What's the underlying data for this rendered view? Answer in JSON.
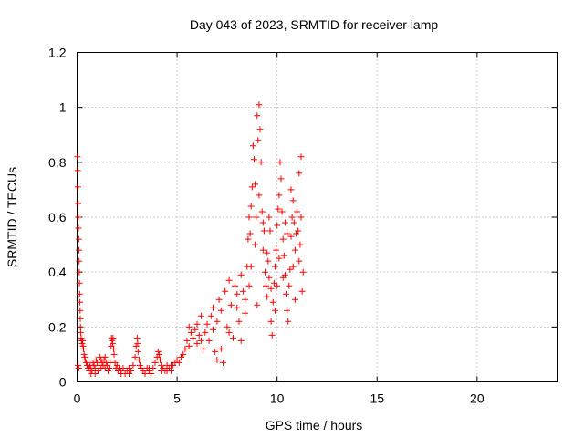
{
  "chart_data": {
    "type": "scatter",
    "title": "Day 043 of 2023, SRMTID for receiver lamp",
    "xlabel": "GPS time / hours",
    "ylabel": "SRMTID / TECUs",
    "xlim": [
      0,
      24
    ],
    "ylim": [
      0,
      1.2
    ],
    "xticks": [
      0,
      5,
      10,
      15,
      20
    ],
    "xtick_labels": [
      "0",
      "5",
      "10",
      "15",
      "20"
    ],
    "yticks": [
      0,
      0.2,
      0.4,
      0.6,
      0.8,
      1.0,
      1.2
    ],
    "ytick_labels": [
      "0",
      "0.2",
      "0.4",
      "0.6",
      "0.8",
      "1",
      "1.2"
    ],
    "grid": true,
    "marker": "+",
    "series_color": "#ff0000",
    "series": [
      {
        "name": "SRMTID",
        "points": [
          [
            0.02,
            0.82
          ],
          [
            0.03,
            0.77
          ],
          [
            0.04,
            0.71
          ],
          [
            0.05,
            0.65
          ],
          [
            0.06,
            0.6
          ],
          [
            0.07,
            0.56
          ],
          [
            0.08,
            0.52
          ],
          [
            0.09,
            0.48
          ],
          [
            0.1,
            0.44
          ],
          [
            0.11,
            0.4
          ],
          [
            0.12,
            0.36
          ],
          [
            0.13,
            0.32
          ],
          [
            0.14,
            0.29
          ],
          [
            0.15,
            0.26
          ],
          [
            0.16,
            0.23
          ],
          [
            0.17,
            0.2
          ],
          [
            0.18,
            0.18
          ],
          [
            0.2,
            0.16
          ],
          [
            0.22,
            0.15
          ],
          [
            0.25,
            0.14
          ],
          [
            0.28,
            0.15
          ],
          [
            0.3,
            0.13
          ],
          [
            0.32,
            0.12
          ],
          [
            0.35,
            0.1
          ],
          [
            0.38,
            0.09
          ],
          [
            0.4,
            0.08
          ],
          [
            0.05,
            0.06
          ],
          [
            0.08,
            0.05
          ],
          [
            0.45,
            0.07
          ],
          [
            0.5,
            0.06
          ],
          [
            0.55,
            0.05
          ],
          [
            0.6,
            0.04
          ],
          [
            0.65,
            0.06
          ],
          [
            0.7,
            0.05
          ],
          [
            0.75,
            0.04
          ],
          [
            0.8,
            0.07
          ],
          [
            0.85,
            0.06
          ],
          [
            0.9,
            0.05
          ],
          [
            0.95,
            0.08
          ],
          [
            1.0,
            0.07
          ],
          [
            1.05,
            0.04
          ],
          [
            1.1,
            0.06
          ],
          [
            1.15,
            0.09
          ],
          [
            1.2,
            0.05
          ],
          [
            1.25,
            0.07
          ],
          [
            1.3,
            0.06
          ],
          [
            1.35,
            0.08
          ],
          [
            1.4,
            0.05
          ],
          [
            1.45,
            0.07
          ],
          [
            1.5,
            0.06
          ],
          [
            1.55,
            0.04
          ],
          [
            1.6,
            0.05
          ],
          [
            1.65,
            0.07
          ],
          [
            1.7,
            0.13
          ],
          [
            1.72,
            0.16
          ],
          [
            1.75,
            0.15
          ],
          [
            1.78,
            0.14
          ],
          [
            1.8,
            0.16
          ],
          [
            1.83,
            0.12
          ],
          [
            1.85,
            0.1
          ],
          [
            1.9,
            0.07
          ],
          [
            1.95,
            0.05
          ],
          [
            2.0,
            0.06
          ],
          [
            2.05,
            0.04
          ],
          [
            2.1,
            0.05
          ],
          [
            2.2,
            0.04
          ],
          [
            2.3,
            0.05
          ],
          [
            2.4,
            0.03
          ],
          [
            2.5,
            0.04
          ],
          [
            2.6,
            0.05
          ],
          [
            2.7,
            0.04
          ],
          [
            2.8,
            0.06
          ],
          [
            2.9,
            0.09
          ],
          [
            2.95,
            0.13
          ],
          [
            3.0,
            0.16
          ],
          [
            3.03,
            0.14
          ],
          [
            3.05,
            0.11
          ],
          [
            3.1,
            0.08
          ],
          [
            3.15,
            0.06
          ],
          [
            3.2,
            0.05
          ],
          [
            3.3,
            0.04
          ],
          [
            3.4,
            0.03
          ],
          [
            3.5,
            0.05
          ],
          [
            3.6,
            0.04
          ],
          [
            3.7,
            0.03
          ],
          [
            3.8,
            0.05
          ],
          [
            3.9,
            0.07
          ],
          [
            4.0,
            0.09
          ],
          [
            4.05,
            0.11
          ],
          [
            4.1,
            0.1
          ],
          [
            4.15,
            0.08
          ],
          [
            4.2,
            0.06
          ],
          [
            4.3,
            0.05
          ],
          [
            4.4,
            0.04
          ],
          [
            4.5,
            0.06
          ],
          [
            4.6,
            0.05
          ],
          [
            4.7,
            0.04
          ],
          [
            4.8,
            0.06
          ],
          [
            4.9,
            0.07
          ],
          [
            5.0,
            0.08
          ],
          [
            5.1,
            0.07
          ],
          [
            5.2,
            0.09
          ],
          [
            0.7,
            0.03
          ],
          [
            0.9,
            0.03
          ],
          [
            1.2,
            0.08
          ],
          [
            1.4,
            0.09
          ],
          [
            2.2,
            0.03
          ],
          [
            2.6,
            0.03
          ],
          [
            3.6,
            0.05
          ],
          [
            4.2,
            0.04
          ],
          [
            4.5,
            0.04
          ],
          [
            4.7,
            0.06
          ],
          [
            5.3,
            0.1
          ],
          [
            5.4,
            0.12
          ],
          [
            5.5,
            0.15
          ],
          [
            5.6,
            0.13
          ],
          [
            5.7,
            0.18
          ],
          [
            5.8,
            0.16
          ],
          [
            5.9,
            0.19
          ],
          [
            6.0,
            0.21
          ],
          [
            6.0,
            0.14
          ],
          [
            6.1,
            0.17
          ],
          [
            6.2,
            0.15
          ],
          [
            6.3,
            0.12
          ],
          [
            6.4,
            0.18
          ],
          [
            6.5,
            0.21
          ],
          [
            6.6,
            0.15
          ],
          [
            6.7,
            0.24
          ],
          [
            6.8,
            0.19
          ],
          [
            6.9,
            0.11
          ],
          [
            7.0,
            0.22
          ],
          [
            7.0,
            0.08
          ],
          [
            7.1,
            0.3
          ],
          [
            7.2,
            0.26
          ],
          [
            7.3,
            0.07
          ],
          [
            7.4,
            0.33
          ],
          [
            7.5,
            0.2
          ],
          [
            7.6,
            0.37
          ],
          [
            7.7,
            0.28
          ],
          [
            7.8,
            0.16
          ],
          [
            7.9,
            0.35
          ],
          [
            8.0,
            0.27
          ],
          [
            8.1,
            0.22
          ],
          [
            8.2,
            0.39
          ],
          [
            8.3,
            0.33
          ],
          [
            8.4,
            0.25
          ],
          [
            8.5,
            0.42
          ],
          [
            8.55,
            0.52
          ],
          [
            8.6,
            0.6
          ],
          [
            8.65,
            0.54
          ],
          [
            8.7,
            0.64
          ],
          [
            8.75,
            0.71
          ],
          [
            8.8,
            0.86
          ],
          [
            8.85,
            0.81
          ],
          [
            8.9,
            0.72
          ],
          [
            8.95,
            0.6
          ],
          [
            9.0,
            0.97
          ],
          [
            9.05,
            0.88
          ],
          [
            9.1,
            1.01
          ],
          [
            9.15,
            0.92
          ],
          [
            9.2,
            0.8
          ],
          [
            9.25,
            0.62
          ],
          [
            9.3,
            0.48
          ],
          [
            9.35,
            0.55
          ],
          [
            9.4,
            0.4
          ],
          [
            9.45,
            0.35
          ],
          [
            9.5,
            0.31
          ],
          [
            9.55,
            0.44
          ],
          [
            9.6,
            0.38
          ],
          [
            9.65,
            0.55
          ],
          [
            9.7,
            0.22
          ],
          [
            9.75,
            0.17
          ],
          [
            9.8,
            0.29
          ],
          [
            9.85,
            0.36
          ],
          [
            9.9,
            0.42
          ],
          [
            9.95,
            0.48
          ],
          [
            10.0,
            0.57
          ],
          [
            10.05,
            0.63
          ],
          [
            10.1,
            0.68
          ],
          [
            10.15,
            0.8
          ],
          [
            10.2,
            0.74
          ],
          [
            10.25,
            0.62
          ],
          [
            10.3,
            0.52
          ],
          [
            10.35,
            0.46
          ],
          [
            10.4,
            0.39
          ],
          [
            10.45,
            0.32
          ],
          [
            10.5,
            0.26
          ],
          [
            10.55,
            0.22
          ],
          [
            10.6,
            0.35
          ],
          [
            10.65,
            0.41
          ],
          [
            10.7,
            0.53
          ],
          [
            10.75,
            0.6
          ],
          [
            10.8,
            0.66
          ],
          [
            10.85,
            0.58
          ],
          [
            10.9,
            0.48
          ],
          [
            10.95,
            0.54
          ],
          [
            11.0,
            0.62
          ],
          [
            11.05,
            0.55
          ],
          [
            11.1,
            0.44
          ],
          [
            11.15,
            0.5
          ],
          [
            11.2,
            0.6
          ],
          [
            11.25,
            0.33
          ],
          [
            11.3,
            0.4
          ],
          [
            5.6,
            0.2
          ],
          [
            6.2,
            0.24
          ],
          [
            6.8,
            0.27
          ],
          [
            7.2,
            0.12
          ],
          [
            7.6,
            0.18
          ],
          [
            8.0,
            0.32
          ],
          [
            8.2,
            0.15
          ],
          [
            8.4,
            0.3
          ],
          [
            8.7,
            0.42
          ],
          [
            8.9,
            0.5
          ],
          [
            9.1,
            0.68
          ],
          [
            9.3,
            0.58
          ],
          [
            9.5,
            0.47
          ],
          [
            9.7,
            0.34
          ],
          [
            9.9,
            0.26
          ],
          [
            10.1,
            0.45
          ],
          [
            10.3,
            0.38
          ],
          [
            10.5,
            0.54
          ],
          [
            10.7,
            0.7
          ],
          [
            10.9,
            0.3
          ],
          [
            11.1,
            0.76
          ],
          [
            11.2,
            0.82
          ],
          [
            8.6,
            0.35
          ],
          [
            9.0,
            0.28
          ],
          [
            9.6,
            0.6
          ],
          [
            10.0,
            0.35
          ],
          [
            10.4,
            0.58
          ],
          [
            10.8,
            0.42
          ]
        ]
      }
    ]
  }
}
